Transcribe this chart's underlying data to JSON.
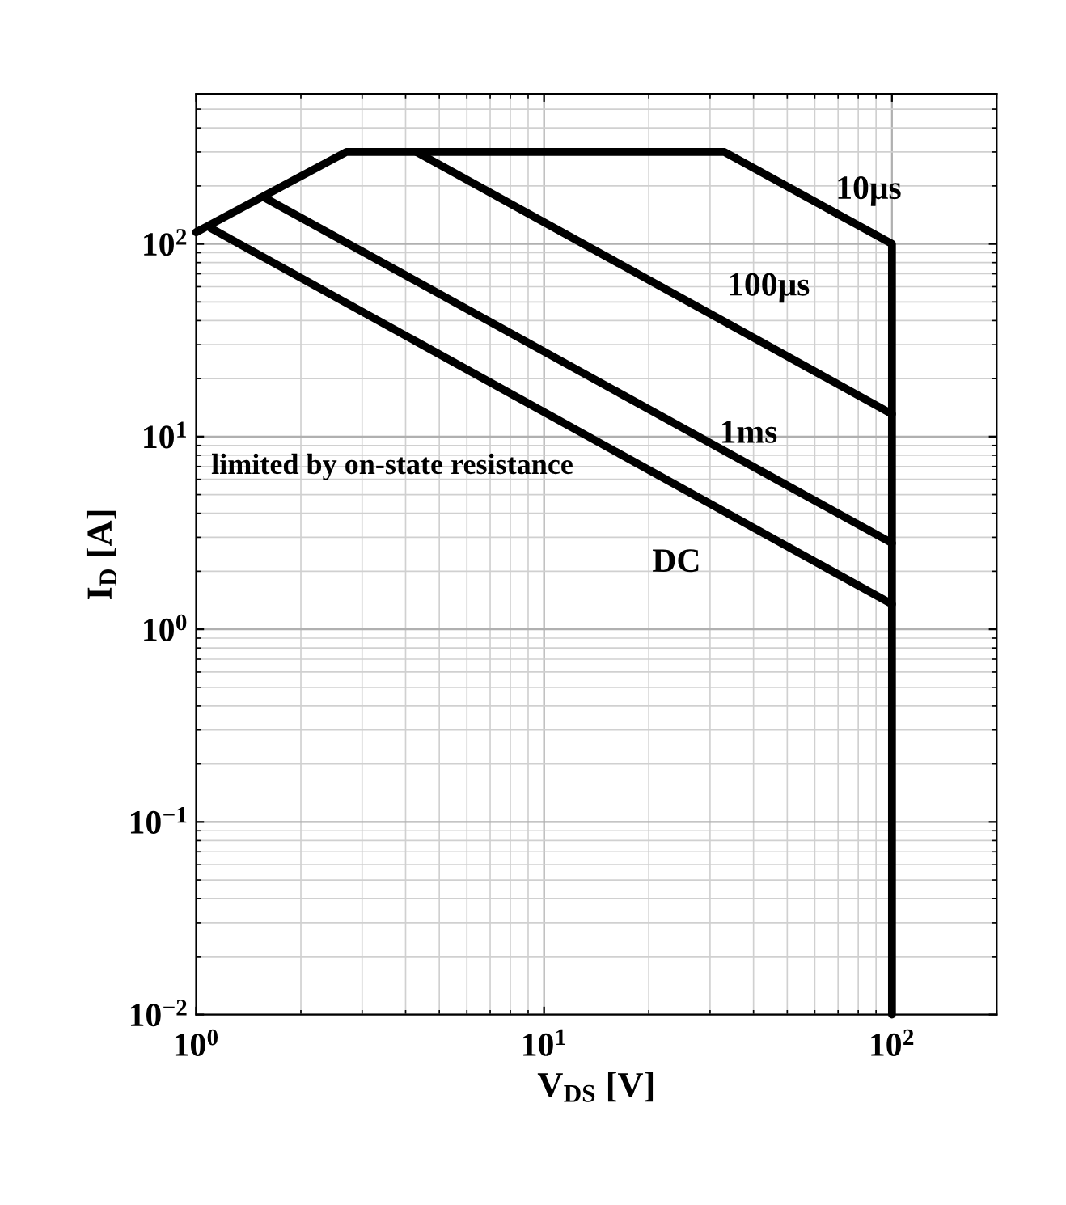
{
  "chart_data": {
    "type": "line",
    "xlabel": "V$_{DS}$ [V]",
    "ylabel": "I$_{D}$ [A]",
    "log": "xy",
    "xlim": [
      1,
      200
    ],
    "ylim": [
      0.01,
      600
    ],
    "xticks": [
      {
        "value": 1,
        "label": "10$^{0}$"
      },
      {
        "value": 10,
        "label": "10$^{1}$"
      },
      {
        "value": 100,
        "label": "10$^{2}$"
      }
    ],
    "yticks": [
      {
        "value": 0.01,
        "label": "10$^{−2}$"
      },
      {
        "value": 0.1,
        "label": "10$^{−1}$"
      },
      {
        "value": 1,
        "label": "10$^{0}$"
      },
      {
        "value": 10,
        "label": "10$^{1}$"
      },
      {
        "value": 100,
        "label": "10$^{2}$"
      }
    ],
    "grid": true,
    "legend": false,
    "marker": "none",
    "line_style": "solid",
    "series": [
      {
        "name": "10μs",
        "color": "#000000",
        "x": [
          1,
          2.7,
          33,
          100,
          100
        ],
        "values": [
          115,
          300,
          300,
          100,
          0.01
        ]
      },
      {
        "name": "100μs",
        "color": "#000000",
        "x": [
          4.3,
          100
        ],
        "values": [
          300,
          13.1
        ]
      },
      {
        "name": "1ms",
        "color": "#000000",
        "x": [
          1.57,
          100
        ],
        "values": [
          174,
          2.8
        ]
      },
      {
        "name": "DC",
        "color": "#000000",
        "x": [
          1.1,
          100
        ],
        "values": [
          121,
          1.35
        ]
      }
    ],
    "annotations": [
      "limited by on-state resistance"
    ]
  }
}
